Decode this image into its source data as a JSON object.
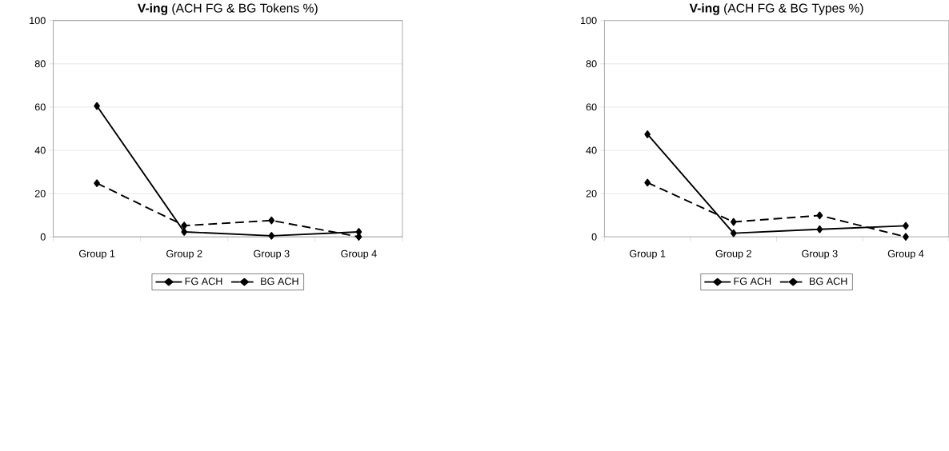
{
  "chart_data": [
    {
      "type": "line",
      "title": "**V-ing** (ACH FG & BG Tokens %)",
      "categories": [
        "Group 1",
        "Group 2",
        "Group 3",
        "Group 4"
      ],
      "series": [
        {
          "name": "FG ACH",
          "color": "#000000",
          "line_style": "solid",
          "values": [
            60.5,
            2.3,
            0.5,
            2.3
          ]
        },
        {
          "name": "BG ACH",
          "color": "#000000",
          "line_style": "dashed",
          "values": [
            24.8,
            5.2,
            7.6,
            0
          ]
        }
      ],
      "ylim": [
        0,
        100
      ],
      "yticks": [
        0,
        20,
        40,
        60,
        80,
        100
      ],
      "grid": "y",
      "legend": "bottom",
      "marker": "diamond"
    },
    {
      "type": "line",
      "title": "**V-ing** (ACH FG & BG Types %)",
      "categories": [
        "Group 1",
        "Group 2",
        "Group 3",
        "Group 4"
      ],
      "series": [
        {
          "name": "FG ACH",
          "color": "#000000",
          "line_style": "solid",
          "values": [
            47.4,
            1.7,
            3.5,
            5.1
          ]
        },
        {
          "name": "BG ACH",
          "color": "#000000",
          "line_style": "dashed",
          "values": [
            25.1,
            6.9,
            9.9,
            0
          ]
        }
      ],
      "ylim": [
        0,
        100
      ],
      "yticks": [
        0,
        20,
        40,
        60,
        80,
        100
      ],
      "grid": "y",
      "legend": "bottom",
      "marker": "diamond"
    }
  ]
}
